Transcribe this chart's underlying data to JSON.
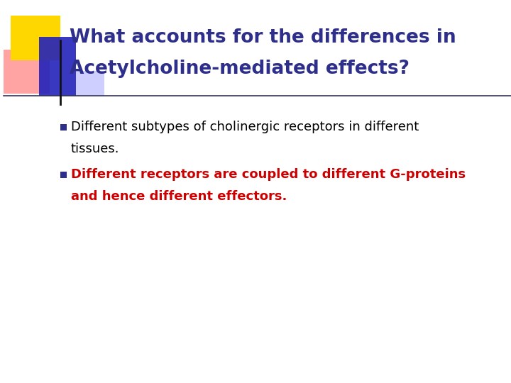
{
  "title_line1": "What accounts for the differences in",
  "title_line2": "Acetylcholine-mediated effects?",
  "title_color": "#2E2E8B",
  "bullet1_text1": "Different subtypes of cholinergic receptors in different",
  "bullet1_text2": "tissues.",
  "bullet1_color": "#000000",
  "bullet2_text1": "Different receptors are coupled to different G-proteins",
  "bullet2_text2": "and hence different effectors.",
  "bullet2_color": "#CC0000",
  "bullet_square_color": "#2E2E8B",
  "background_color": "#FFFFFF",
  "separator_line_color": "#2E2E8B",
  "deco_yellow": "#FFD700",
  "deco_pink": "#FF6666",
  "deco_blue": "#2222BB",
  "deco_blue_light": "#8888FF"
}
